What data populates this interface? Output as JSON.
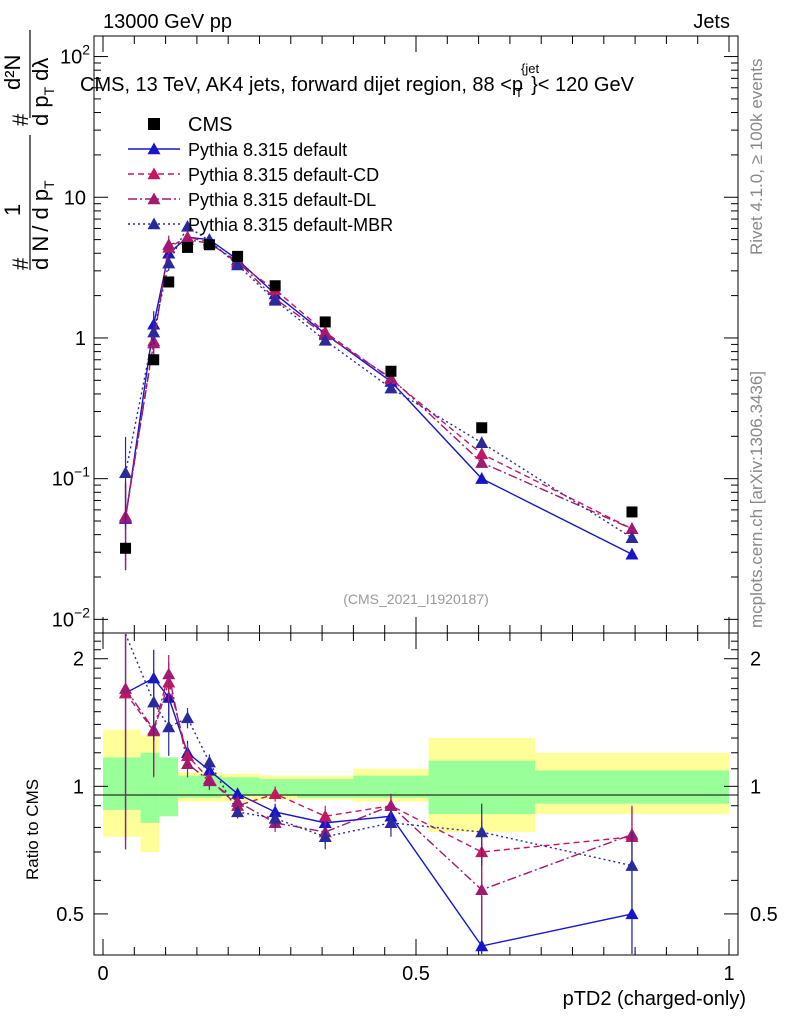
{
  "header": {
    "energy": "13000 GeV pp",
    "category": "Jets",
    "title_part1": "CMS, 13 TeV, AK4 jets, forward dijet region, 88 <",
    "title_p": "p",
    "title_T": "T",
    "title_jet": "{jet",
    "title_part2": "}< 120 GeV",
    "rivet": "Rivet 4.1.0, ≥ 100k events",
    "mcplots": "mcplots.cern.ch [arXiv:1306.3436]",
    "analysis": "(CMS_2021_I1920187)"
  },
  "axes": {
    "ylabel_main": "1/N dN/dpT d²N/dpT dλ",
    "ylabel_main_parts": {
      "hash": "#",
      "one": "1",
      "dN": "d N",
      "sep": "/ d p",
      "T": "T",
      "d2N": "d²N",
      "dp": "d p",
      "dl": "dλ"
    },
    "ylabel_ratio": "Ratio to CMS",
    "xlabel": "pTD2 (charged-only)",
    "main_ticks": [
      {
        "v": 0.01,
        "base": "10",
        "exp": "−2"
      },
      {
        "v": 0.1,
        "base": "10",
        "exp": "−1"
      },
      {
        "v": 1,
        "base": "1",
        "exp": ""
      },
      {
        "v": 10,
        "base": "10",
        "exp": ""
      },
      {
        "v": 100,
        "base": "10",
        "exp": "2"
      }
    ],
    "ratio_ticks": [
      "0.5",
      "1",
      "2"
    ],
    "x_ticks": [
      "0",
      "0.5",
      "1"
    ]
  },
  "chart_data": {
    "type": "line",
    "title": "CMS, 13 TeV, AK4 jets, forward dijet region, 88 < pT jet < 120 GeV",
    "xlabel": "pTD2 (charged-only)",
    "ylabel": "1/N dN/dpT d2N/dpT dlambda",
    "log_y": true,
    "xlim": [
      0,
      1
    ],
    "ylim": [
      0.008,
      140
    ],
    "ratio_ylim": [
      0.4,
      2.3
    ],
    "bin_edges": [
      0,
      0.06,
      0.09,
      0.12,
      0.15,
      0.19,
      0.25,
      0.31,
      0.4,
      0.52,
      0.69,
      1.0
    ],
    "x": [
      0.036,
      0.081,
      0.105,
      0.135,
      0.17,
      0.215,
      0.275,
      0.355,
      0.46,
      0.605,
      0.845
    ],
    "data": {
      "name": "CMS",
      "values": [
        0.032,
        0.7,
        2.5,
        4.4,
        4.6,
        3.8,
        2.35,
        1.3,
        0.58,
        0.23,
        0.058
      ],
      "ratio_band_inner": [
        [
          0.88,
          1.17
        ],
        [
          0.82,
          1.2
        ],
        [
          0.85,
          1.17
        ],
        [
          0.94,
          1.06
        ],
        [
          0.94,
          1.06
        ],
        [
          0.95,
          1.05
        ],
        [
          0.95,
          1.04
        ],
        [
          0.94,
          1.04
        ],
        [
          0.94,
          1.06
        ],
        [
          0.86,
          1.15
        ],
        [
          0.91,
          1.09
        ]
      ],
      "ratio_band_outer": [
        [
          0.76,
          1.36
        ],
        [
          0.7,
          1.32
        ],
        [
          0.85,
          1.17
        ],
        [
          0.92,
          1.08
        ],
        [
          0.92,
          1.08
        ],
        [
          0.92,
          1.07
        ],
        [
          0.93,
          1.06
        ],
        [
          0.93,
          1.06
        ],
        [
          0.92,
          1.1
        ],
        [
          0.78,
          1.3
        ],
        [
          0.86,
          1.2
        ]
      ]
    },
    "series": [
      {
        "name": "Pythia 8.315 default",
        "color": "#1515cc",
        "dash": "",
        "values": [
          0.052,
          1.25,
          4.0,
          5.2,
          5.0,
          3.6,
          2.05,
          1.07,
          0.49,
          0.1,
          0.029
        ],
        "ratio": [
          1.66,
          1.8,
          1.62,
          1.2,
          1.09,
          0.96,
          0.87,
          0.82,
          0.85,
          0.42,
          0.5
        ],
        "ratio_err": [
          0.95,
          0.3,
          0.2,
          0.08,
          0.05,
          0.03,
          0.04,
          0.05,
          0.06,
          0.13,
          0.13
        ]
      },
      {
        "name": "Pythia 8.315 default-CD",
        "color": "#c31860",
        "dash": "6,4",
        "values": [
          0.053,
          0.95,
          4.4,
          5.2,
          4.8,
          3.4,
          2.2,
          1.1,
          0.51,
          0.15,
          0.044
        ],
        "ratio": [
          1.66,
          1.35,
          1.76,
          1.18,
          1.04,
          0.9,
          0.96,
          0.85,
          0.9,
          0.7,
          0.76
        ],
        "ratio_err": [
          0.95,
          0.3,
          0.2,
          0.08,
          0.05,
          0.03,
          0.04,
          0.05,
          0.06,
          0.13,
          0.13
        ]
      },
      {
        "name": "Pythia 8.315 default-DL",
        "color": "#a01a72",
        "dash": "9,3,2,3",
        "values": [
          0.054,
          0.92,
          4.6,
          5.0,
          4.7,
          3.5,
          1.9,
          1.05,
          0.52,
          0.13,
          0.044
        ],
        "ratio": [
          1.7,
          1.36,
          1.84,
          1.13,
          1.03,
          0.92,
          0.82,
          0.78,
          0.9,
          0.57,
          0.77
        ],
        "ratio_err": [
          0.95,
          0.3,
          0.2,
          0.08,
          0.05,
          0.03,
          0.04,
          0.05,
          0.06,
          0.13,
          0.13
        ]
      },
      {
        "name": "Pythia 8.315 default-MBR",
        "color": "#2a2a9a",
        "dash": "2,3",
        "values": [
          0.11,
          1.1,
          3.4,
          6.2,
          4.9,
          3.3,
          1.85,
          0.96,
          0.44,
          0.18,
          0.038
        ],
        "ratio": [
          3.5,
          1.58,
          1.38,
          1.45,
          1.14,
          0.87,
          0.84,
          0.76,
          0.82,
          0.78,
          0.65
        ],
        "ratio_err": [
          1.0,
          0.3,
          0.2,
          0.08,
          0.05,
          0.03,
          0.04,
          0.05,
          0.06,
          0.13,
          0.13
        ]
      }
    ]
  }
}
